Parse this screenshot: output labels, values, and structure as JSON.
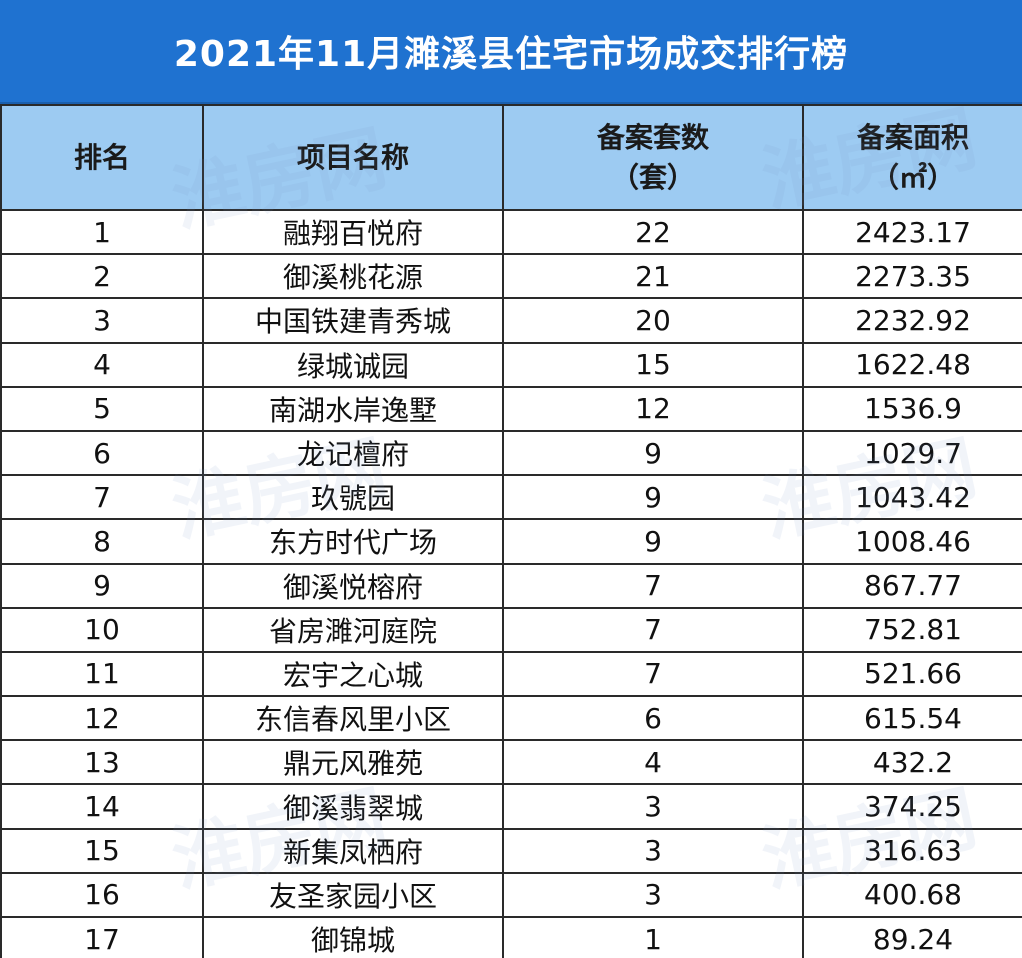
{
  "title": "2021年11月濉溪县住宅市场成交排行榜",
  "headers": {
    "rank": "排名",
    "project": "项目名称",
    "units_line1": "备案套数",
    "units_line2": "（套）",
    "area_line1": "备案面积",
    "area_line2": "（㎡）"
  },
  "rows": [
    {
      "rank": "1",
      "project": "融翔百悦府",
      "units": "22",
      "area": "2423.17"
    },
    {
      "rank": "2",
      "project": "御溪桃花源",
      "units": "21",
      "area": "2273.35"
    },
    {
      "rank": "3",
      "project": "中国铁建青秀城",
      "units": "20",
      "area": "2232.92"
    },
    {
      "rank": "4",
      "project": "绿城诚园",
      "units": "15",
      "area": "1622.48"
    },
    {
      "rank": "5",
      "project": "南湖水岸逸墅",
      "units": "12",
      "area": "1536.9"
    },
    {
      "rank": "6",
      "project": "龙记檀府",
      "units": "9",
      "area": "1029.7"
    },
    {
      "rank": "7",
      "project": "玖號园",
      "units": "9",
      "area": "1043.42"
    },
    {
      "rank": "8",
      "project": "东方时代广场",
      "units": "9",
      "area": "1008.46"
    },
    {
      "rank": "9",
      "project": "御溪悦榕府",
      "units": "7",
      "area": "867.77"
    },
    {
      "rank": "10",
      "project": "省房濉河庭院",
      "units": "7",
      "area": "752.81"
    },
    {
      "rank": "11",
      "project": "宏宇之心城",
      "units": "7",
      "area": "521.66"
    },
    {
      "rank": "12",
      "project": "东信春风里小区",
      "units": "6",
      "area": "615.54"
    },
    {
      "rank": "13",
      "project": "鼎元风雅苑",
      "units": "4",
      "area": "432.2"
    },
    {
      "rank": "14",
      "project": "御溪翡翠城",
      "units": "3",
      "area": "374.25"
    },
    {
      "rank": "15",
      "project": "新集凤栖府",
      "units": "3",
      "area": "316.63"
    },
    {
      "rank": "16",
      "project": "友圣家园小区",
      "units": "3",
      "area": "400.68"
    },
    {
      "rank": "17",
      "project": "御锦城",
      "units": "1",
      "area": "89.24"
    }
  ],
  "watermark": "淮房网",
  "colors": {
    "title_bg": "#1f72d0",
    "header_bg": "#9dcbf2",
    "border": "#2a2a2a"
  }
}
